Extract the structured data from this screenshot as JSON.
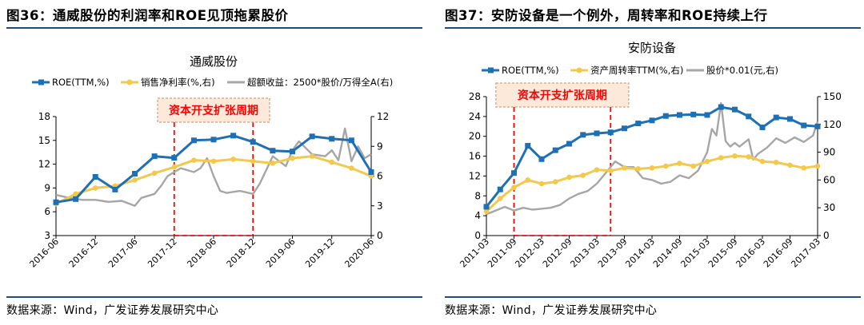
{
  "chart_data": [
    {
      "type": "line",
      "figure_title": "图36：通威股份的利润率和ROE见顶拖累股价",
      "title": "通威股份",
      "source": "数据来源：Wind，广发证券发展研究中心",
      "annotation": "资本开支扩张周期",
      "annotation_range": [
        "2017-12",
        "2018-12"
      ],
      "x_ticks": [
        "2016-06",
        "2016-12",
        "2017-06",
        "2017-12",
        "2018-06",
        "2018-12",
        "2019-06",
        "2019-12",
        "2020-06"
      ],
      "x_range": [
        "2016-06",
        "2020-06"
      ],
      "ylim": [
        3,
        18
      ],
      "y_ticks": [
        3,
        6,
        9,
        12,
        15,
        18
      ],
      "y2lim": [
        0,
        12
      ],
      "y2_ticks": [
        0,
        3,
        6,
        9,
        12
      ],
      "colors": {
        "roe": "#1f6fb4",
        "margin": "#f2c94c",
        "excess": "#a6a6a6",
        "annotation": "#ff0000",
        "annotation_fill": "#fde9d9"
      },
      "series": [
        {
          "name": "ROE(TTM,%)",
          "axis": "left",
          "marker": "square",
          "x": [
            "2016-06",
            "2016-09",
            "2016-12",
            "2017-03",
            "2017-06",
            "2017-09",
            "2017-12",
            "2018-03",
            "2018-06",
            "2018-09",
            "2018-12",
            "2019-03",
            "2019-06",
            "2019-09",
            "2019-12",
            "2020-03",
            "2020-06"
          ],
          "values": [
            7.2,
            7.6,
            10.4,
            8.8,
            10.8,
            13.0,
            12.8,
            15.0,
            15.1,
            15.6,
            14.8,
            13.7,
            13.6,
            15.5,
            15.2,
            15.0,
            11.0
          ]
        },
        {
          "name": "销售净利率(%,右)",
          "axis": "right",
          "marker": "circle",
          "x": [
            "2016-06",
            "2016-09",
            "2016-12",
            "2017-03",
            "2017-06",
            "2017-09",
            "2017-12",
            "2018-03",
            "2018-06",
            "2018-09",
            "2018-12",
            "2019-03",
            "2019-06",
            "2019-09",
            "2019-12",
            "2020-03",
            "2020-06"
          ],
          "values": [
            3.2,
            4.2,
            4.8,
            5.0,
            5.6,
            6.3,
            6.9,
            7.6,
            7.5,
            7.7,
            7.5,
            7.3,
            7.8,
            8.0,
            7.4,
            6.8,
            6.0
          ]
        },
        {
          "name": "超额收益：2500*股价/万得全A(右)",
          "axis": "right",
          "marker": "none",
          "x": [
            "2016-06",
            "2016-08",
            "2016-10",
            "2016-12",
            "2017-02",
            "2017-04",
            "2017-06",
            "2017-07",
            "2017-09",
            "2017-10",
            "2017-11",
            "2017-12",
            "2018-01",
            "2018-02",
            "2018-03",
            "2018-04",
            "2018-05",
            "2018-06",
            "2018-07",
            "2018-08",
            "2018-10",
            "2018-12",
            "2019-01",
            "2019-02",
            "2019-03",
            "2019-05",
            "2019-06",
            "2019-07",
            "2019-09",
            "2019-11",
            "2019-12",
            "2020-01",
            "2020-02",
            "2020-03",
            "2020-04",
            "2020-05",
            "2020-06"
          ],
          "values": [
            4.1,
            3.8,
            3.6,
            3.6,
            3.4,
            3.5,
            3.0,
            3.8,
            4.2,
            5.0,
            6.0,
            6.4,
            6.8,
            6.6,
            6.4,
            6.8,
            7.8,
            6.0,
            4.5,
            4.3,
            4.5,
            4.2,
            5.2,
            6.6,
            8.0,
            7.0,
            8.6,
            9.5,
            8.2,
            8.0,
            8.6,
            7.6,
            10.8,
            7.5,
            9.0,
            7.8,
            8.2
          ]
        }
      ]
    },
    {
      "type": "line",
      "figure_title": "图37：安防设备是一个例外，周转率和ROE持续上行",
      "title": "安防设备",
      "source": "数据来源：Wind，广发证券发展研究中心",
      "annotation": "资本开支扩张周期",
      "annotation_range": [
        "2011-09",
        "2013-06"
      ],
      "x_ticks": [
        "2011-03",
        "2011-09",
        "2012-03",
        "2012-09",
        "2013-03",
        "2013-09",
        "2014-03",
        "2014-09",
        "2015-03",
        "2015-09",
        "2016-03",
        "2016-09",
        "2017-03"
      ],
      "x_range": [
        "2011-03",
        "2017-03"
      ],
      "ylim": [
        0,
        28
      ],
      "y_ticks": [
        0,
        4,
        8,
        12,
        16,
        20,
        24,
        28
      ],
      "y2lim": [
        0,
        150
      ],
      "y2_ticks": [
        0,
        30,
        60,
        90,
        120,
        150
      ],
      "colors": {
        "roe": "#1f6fb4",
        "turnover": "#f2c94c",
        "price": "#a6a6a6",
        "annotation": "#ff0000",
        "annotation_fill": "#fde9d9"
      },
      "series": [
        {
          "name": "ROE(TTM,%)",
          "axis": "left",
          "marker": "square",
          "x": [
            "2011-03",
            "2011-06",
            "2011-09",
            "2011-12",
            "2012-03",
            "2012-06",
            "2012-09",
            "2012-12",
            "2013-03",
            "2013-06",
            "2013-09",
            "2013-12",
            "2014-03",
            "2014-06",
            "2014-09",
            "2014-12",
            "2015-03",
            "2015-06",
            "2015-09",
            "2015-12",
            "2016-03",
            "2016-06",
            "2016-09",
            "2016-12",
            "2017-03"
          ],
          "values": [
            5.8,
            9.3,
            12.6,
            18.1,
            15.4,
            17.2,
            18.5,
            20.3,
            20.6,
            20.8,
            21.6,
            22.6,
            23.2,
            24.1,
            24.3,
            24.4,
            24.3,
            25.9,
            25.4,
            24.0,
            21.8,
            23.8,
            23.5,
            22.2,
            22.0
          ]
        },
        {
          "name": "资产周转率TTM(%,右)",
          "axis": "right",
          "marker": "circle",
          "x": [
            "2011-03",
            "2011-06",
            "2011-09",
            "2011-12",
            "2012-03",
            "2012-06",
            "2012-09",
            "2012-12",
            "2013-03",
            "2013-06",
            "2013-09",
            "2013-12",
            "2014-03",
            "2014-06",
            "2014-09",
            "2014-12",
            "2015-03",
            "2015-06",
            "2015-09",
            "2015-12",
            "2016-03",
            "2016-06",
            "2016-09",
            "2016-12",
            "2017-03"
          ],
          "values": [
            26,
            40,
            52,
            60,
            56,
            58,
            63,
            65,
            71,
            70,
            73,
            72,
            73,
            75,
            78,
            75,
            80,
            84,
            86,
            85,
            80,
            79,
            76,
            73,
            75
          ]
        },
        {
          "name": "股价*0.01(元,右)",
          "axis": "right",
          "marker": "none",
          "x": [
            "2011-03",
            "2011-05",
            "2011-07",
            "2011-09",
            "2011-11",
            "2012-01",
            "2012-03",
            "2012-05",
            "2012-07",
            "2012-09",
            "2012-11",
            "2013-01",
            "2013-03",
            "2013-05",
            "2013-07",
            "2013-09",
            "2013-11",
            "2014-01",
            "2014-03",
            "2014-05",
            "2014-07",
            "2014-09",
            "2014-11",
            "2015-01",
            "2015-03",
            "2015-04",
            "2015-05",
            "2015-06",
            "2015-07",
            "2015-08",
            "2015-09",
            "2015-10",
            "2015-12",
            "2016-01",
            "2016-02",
            "2016-04",
            "2016-06",
            "2016-08",
            "2016-10",
            "2016-12",
            "2017-02",
            "2017-03"
          ],
          "values": [
            23,
            27,
            31,
            27,
            30,
            28,
            29,
            30,
            33,
            40,
            45,
            48,
            56,
            68,
            80,
            74,
            74,
            62,
            60,
            56,
            58,
            65,
            62,
            70,
            90,
            115,
            108,
            143,
            102,
            96,
            100,
            96,
            104,
            82,
            88,
            95,
            105,
            100,
            106,
            101,
            108,
            123
          ]
        }
      ]
    }
  ]
}
